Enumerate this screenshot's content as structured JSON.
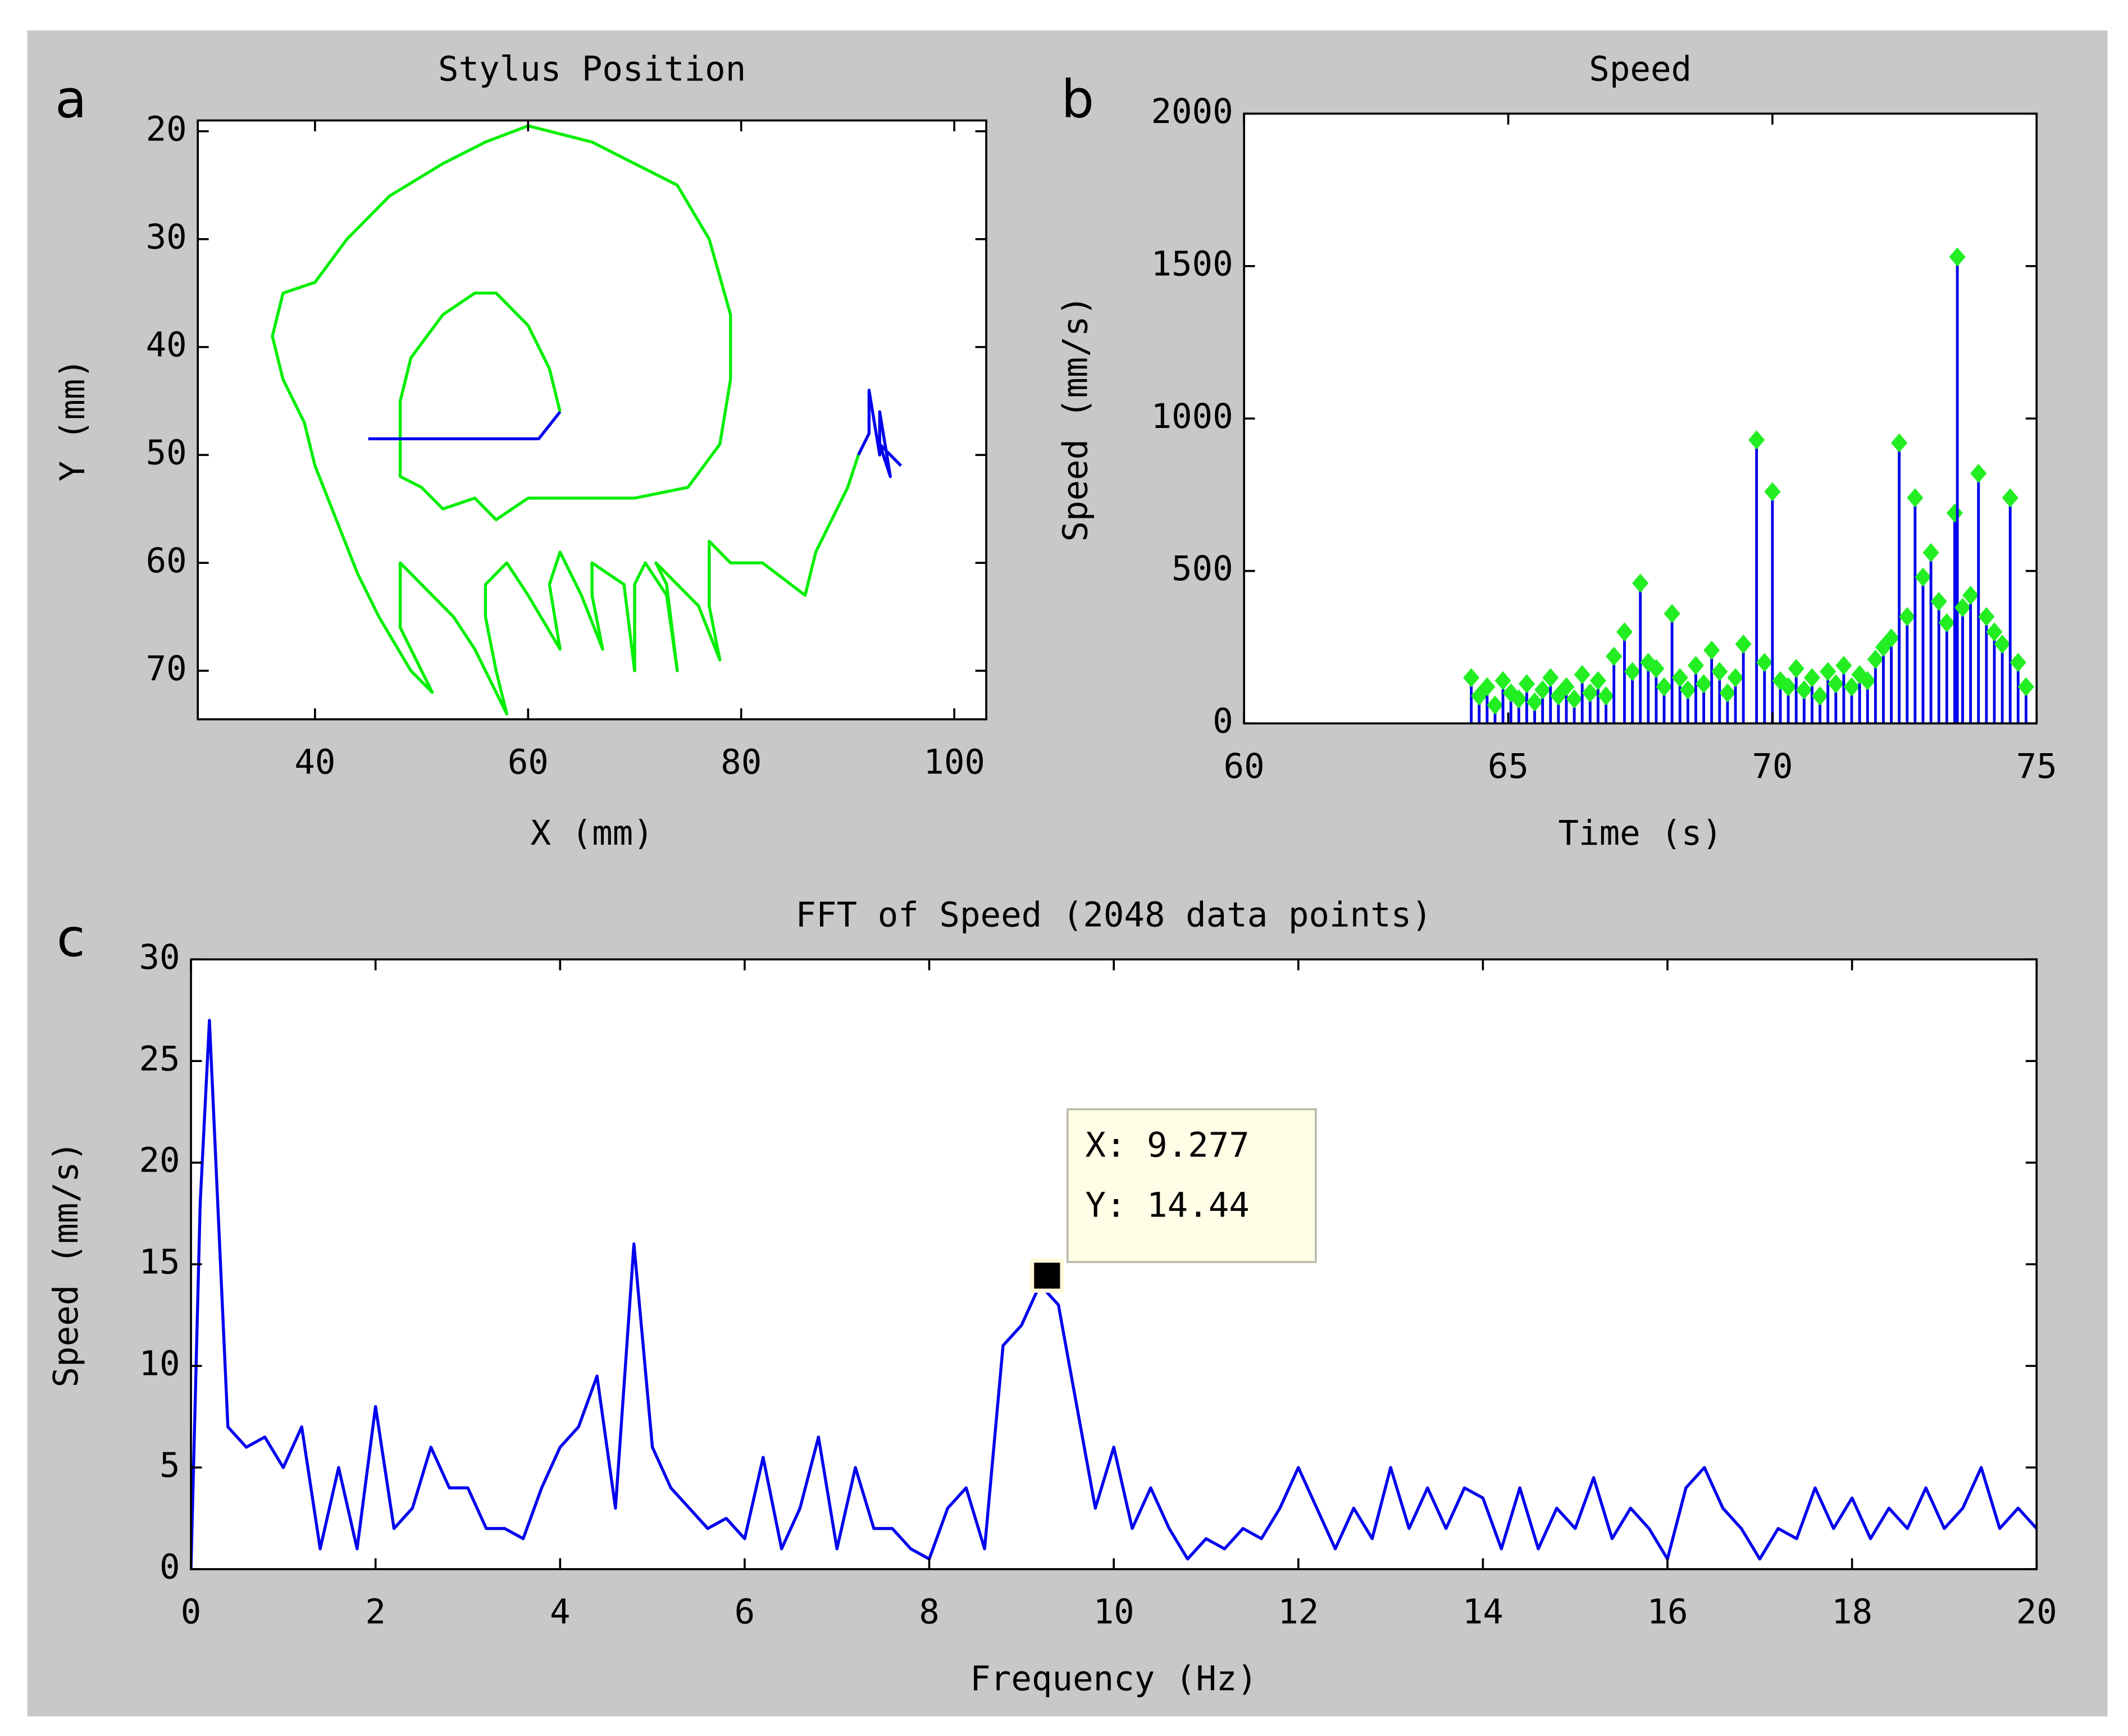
{
  "panel_labels": [
    "a",
    "b",
    "c"
  ],
  "chart_data": [
    {
      "type": "line",
      "title": "Stylus Position",
      "xlabel": "X (mm)",
      "ylabel": "Y (mm)",
      "xlim": [
        29,
        103
      ],
      "xticks": [
        40,
        60,
        80,
        100
      ],
      "ylim": [
        19,
        74.5
      ],
      "yticks": [
        20,
        30,
        40,
        50,
        60,
        70
      ],
      "y_reversed": true,
      "series": [
        {
          "color": "#00ee00",
          "x": [
            63,
            62,
            60,
            57,
            55,
            52,
            49,
            48,
            48,
            48,
            50,
            52,
            55,
            57,
            60,
            65,
            70,
            75,
            78,
            79,
            79,
            77,
            74,
            70,
            66,
            60,
            56,
            52,
            47,
            43,
            40,
            37,
            36,
            37,
            39,
            40,
            42,
            44,
            46,
            49,
            51,
            48,
            48,
            50,
            53,
            55,
            58,
            57,
            56,
            56,
            58,
            60,
            63,
            62,
            63,
            65,
            67,
            66,
            66,
            69,
            70,
            70,
            71,
            73,
            74,
            73,
            72,
            76,
            78,
            77,
            77,
            79,
            82,
            86,
            87,
            89,
            90,
            91
          ],
          "values": [
            46,
            42,
            38,
            35,
            35,
            37,
            41,
            45,
            49,
            52,
            53,
            55,
            54,
            56,
            54,
            54,
            54,
            53,
            49,
            43,
            37,
            30,
            25,
            23,
            21,
            19.5,
            21,
            23,
            26,
            30,
            34,
            35,
            39,
            43,
            47,
            51,
            56,
            61,
            65,
            70,
            72,
            66,
            60,
            62,
            65,
            68,
            74,
            70,
            65,
            62,
            60,
            63,
            68,
            62,
            59,
            63,
            68,
            63,
            60,
            62,
            70,
            62,
            60,
            63,
            70,
            62,
            60,
            64,
            69,
            64,
            58,
            60,
            60,
            63,
            59,
            55,
            53,
            50
          ]
        },
        {
          "color": "#0000ee",
          "x": [
            45,
            61,
            63,
            null,
            91,
            92,
            92,
            93,
            93,
            94,
            93,
            95
          ],
          "values": [
            48.5,
            48.5,
            46,
            null,
            50,
            48,
            44,
            50,
            46,
            52,
            49,
            51
          ]
        }
      ]
    },
    {
      "type": "stem",
      "title": "Speed",
      "xlabel": "Time (s)",
      "ylabel": "Speed (mm/s)",
      "xlim": [
        60,
        75
      ],
      "xticks": [
        60,
        65,
        70,
        75
      ],
      "ylim": [
        0,
        2000
      ],
      "yticks": [
        0,
        500,
        1000,
        1500,
        2000
      ],
      "color": "#0000ee",
      "marker_color": "#22ee22",
      "x": [
        64.3,
        64.45,
        64.6,
        64.75,
        64.9,
        65.05,
        65.2,
        65.35,
        65.5,
        65.65,
        65.8,
        65.95,
        66.1,
        66.25,
        66.4,
        66.55,
        66.7,
        66.85,
        67.0,
        67.2,
        67.35,
        67.5,
        67.65,
        67.8,
        67.95,
        68.1,
        68.25,
        68.4,
        68.55,
        68.7,
        68.85,
        69.0,
        69.15,
        69.3,
        69.45,
        69.7,
        69.85,
        70.0,
        70.15,
        70.3,
        70.45,
        70.6,
        70.75,
        70.9,
        71.05,
        71.2,
        71.35,
        71.5,
        71.65,
        71.8,
        71.95,
        72.1,
        72.25,
        72.4,
        72.55,
        72.7,
        72.85,
        73.0,
        73.15,
        73.3,
        73.45,
        73.5,
        73.6,
        73.75,
        73.9,
        74.05,
        74.2,
        74.35,
        74.5,
        74.65,
        74.8
      ],
      "values": [
        150,
        90,
        120,
        60,
        140,
        100,
        80,
        130,
        70,
        110,
        150,
        90,
        120,
        80,
        160,
        100,
        140,
        90,
        220,
        300,
        170,
        460,
        200,
        180,
        120,
        360,
        150,
        110,
        190,
        130,
        240,
        170,
        100,
        150,
        260,
        930,
        200,
        760,
        140,
        120,
        180,
        110,
        150,
        90,
        170,
        130,
        190,
        120,
        160,
        140,
        210,
        250,
        280,
        920,
        350,
        740,
        480,
        560,
        400,
        330,
        690,
        1530,
        380,
        420,
        820,
        350,
        300,
        260,
        740,
        200,
        120
      ]
    },
    {
      "type": "line",
      "title": "FFT of Speed (2048 data points)",
      "xlabel": "Frequency (Hz)",
      "ylabel": "Speed (mm/s)",
      "xlim": [
        0,
        20
      ],
      "xticks": [
        0,
        2,
        4,
        6,
        8,
        10,
        12,
        14,
        16,
        18,
        20
      ],
      "ylim": [
        0,
        30
      ],
      "yticks": [
        0,
        5,
        10,
        15,
        20,
        25,
        30
      ],
      "series": [
        {
          "color": "#0000ee",
          "x": [
            0,
            0.1,
            0.2,
            0.4,
            0.6,
            0.8,
            1.0,
            1.2,
            1.4,
            1.6,
            1.8,
            2.0,
            2.2,
            2.4,
            2.6,
            2.8,
            3.0,
            3.2,
            3.4,
            3.6,
            3.8,
            4.0,
            4.2,
            4.4,
            4.6,
            4.8,
            5.0,
            5.2,
            5.4,
            5.6,
            5.8,
            6.0,
            6.2,
            6.4,
            6.6,
            6.8,
            7.0,
            7.2,
            7.4,
            7.6,
            7.8,
            8.0,
            8.2,
            8.4,
            8.6,
            8.8,
            9.0,
            9.2,
            9.4,
            9.6,
            9.8,
            10.0,
            10.2,
            10.4,
            10.6,
            10.8,
            11.0,
            11.2,
            11.4,
            11.6,
            11.8,
            12.0,
            12.2,
            12.4,
            12.6,
            12.8,
            13.0,
            13.2,
            13.4,
            13.6,
            13.8,
            14.0,
            14.2,
            14.4,
            14.6,
            14.8,
            15.0,
            15.2,
            15.4,
            15.6,
            15.8,
            16.0,
            16.2,
            16.4,
            16.6,
            16.8,
            17.0,
            17.2,
            17.4,
            17.6,
            17.8,
            18.0,
            18.2,
            18.4,
            18.6,
            18.8,
            19.0,
            19.2,
            19.4,
            19.6,
            19.8,
            20.0
          ],
          "values": [
            0,
            18,
            27,
            7,
            6,
            6.5,
            5,
            7,
            1,
            5,
            1,
            8,
            2,
            3,
            6,
            4,
            4,
            2,
            2,
            1.5,
            4,
            6,
            7,
            9.5,
            3,
            16,
            6,
            4,
            3,
            2,
            2.5,
            1.5,
            5.5,
            1,
            3,
            6.5,
            1,
            5,
            2,
            2,
            1,
            0.5,
            3,
            4,
            1,
            11,
            12,
            14,
            13,
            8,
            3,
            6,
            2,
            4,
            2,
            0.5,
            1.5,
            1,
            2,
            1.5,
            3,
            5,
            3,
            1,
            3,
            1.5,
            5,
            2,
            4,
            2,
            4,
            3.5,
            1,
            4,
            1,
            3,
            2,
            4.5,
            1.5,
            3,
            2,
            0.5,
            4,
            5,
            3,
            2,
            0.5,
            2,
            1.5,
            4,
            2,
            3.5,
            1.5,
            3,
            2,
            4,
            2,
            3,
            5,
            2,
            3,
            2
          ]
        }
      ],
      "datatip": {
        "x": 9.277,
        "y": 14.44,
        "x_label": "X: 9.277",
        "y_label": "Y: 14.44"
      }
    }
  ]
}
